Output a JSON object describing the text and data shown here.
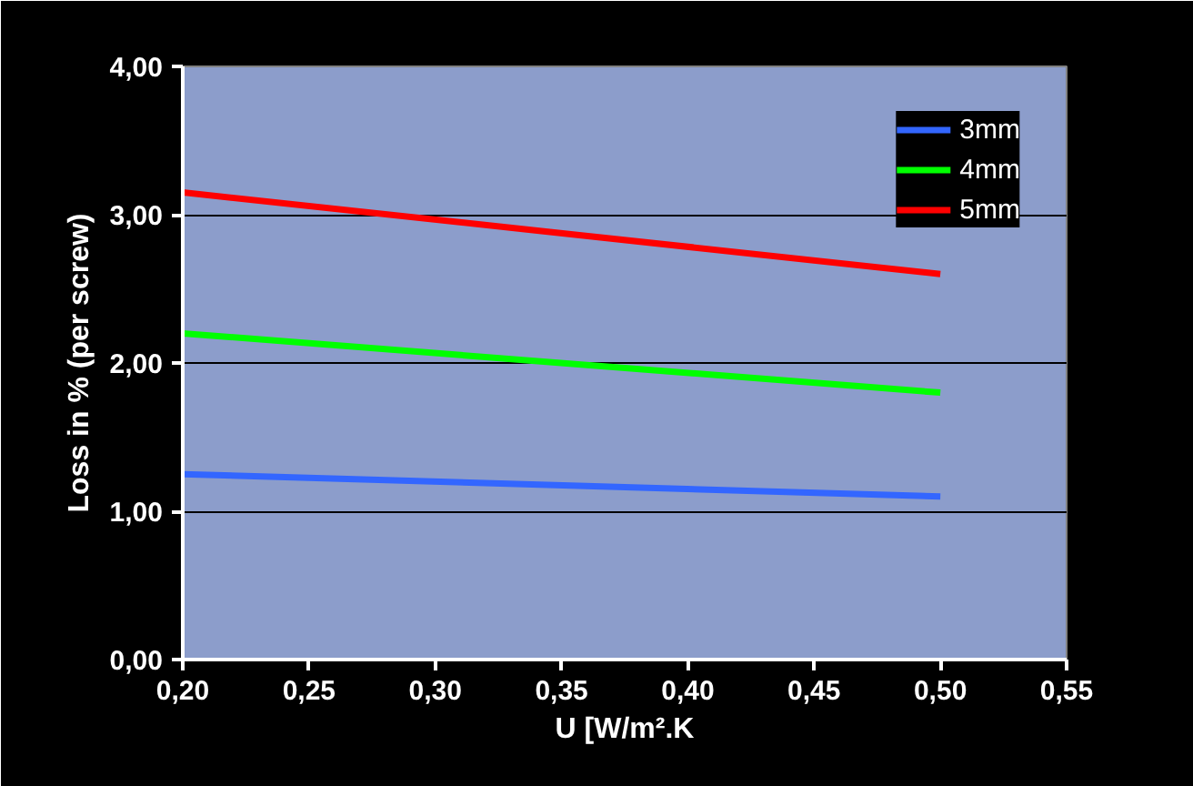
{
  "chart_data": {
    "type": "line",
    "xlabel": "U [W/m².K",
    "ylabel": "Loss in % (per screw)",
    "x": [
      0.2,
      0.5
    ],
    "series": [
      {
        "name": "3mm",
        "color": "#3366ff",
        "values": [
          1.25,
          1.1
        ]
      },
      {
        "name": "4mm",
        "color": "#00ff00",
        "values": [
          2.2,
          1.8
        ]
      },
      {
        "name": "5mm",
        "color": "#ff0000",
        "values": [
          3.15,
          2.6
        ]
      }
    ],
    "xlim": [
      0.2,
      0.55
    ],
    "ylim": [
      0,
      4
    ],
    "xticks": [
      {
        "value": 0.2,
        "label": "0,20"
      },
      {
        "value": 0.25,
        "label": "0,25"
      },
      {
        "value": 0.3,
        "label": "0,30"
      },
      {
        "value": 0.35,
        "label": "0,35"
      },
      {
        "value": 0.4,
        "label": "0,40"
      },
      {
        "value": 0.45,
        "label": "0,45"
      },
      {
        "value": 0.5,
        "label": "0,50"
      },
      {
        "value": 0.55,
        "label": "0,55"
      }
    ],
    "yticks": [
      {
        "value": 0,
        "label": "0,00"
      },
      {
        "value": 1,
        "label": "1,00"
      },
      {
        "value": 2,
        "label": "2,00"
      },
      {
        "value": 3,
        "label": "3,00"
      },
      {
        "value": 4,
        "label": "4,00"
      }
    ],
    "grid": "y",
    "legend": "top right",
    "line_style": "solid",
    "marker": "none"
  }
}
